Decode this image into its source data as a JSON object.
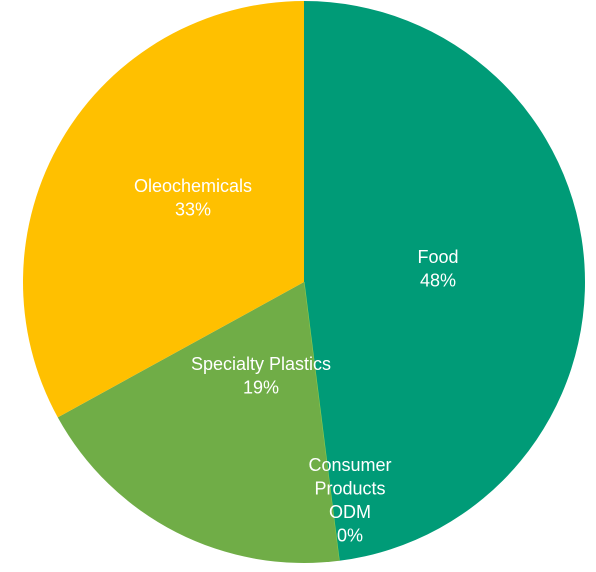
{
  "chart_data": {
    "type": "pie",
    "title": "",
    "slices": [
      {
        "label": "Food",
        "value": 48,
        "value_label": "48%",
        "color": "#009B77"
      },
      {
        "label": "Consumer Products ODM",
        "value": 0,
        "value_label": "0%",
        "color": "#92D050"
      },
      {
        "label": "Specialty Plastics",
        "value": 19,
        "value_label": "19%",
        "color": "#70AD47"
      },
      {
        "label": "Oleochemicals",
        "value": 33,
        "value_label": "33%",
        "color": "#FFC000"
      }
    ],
    "start_angle": "12 o'clock",
    "direction": "clockwise",
    "legend": "none"
  }
}
